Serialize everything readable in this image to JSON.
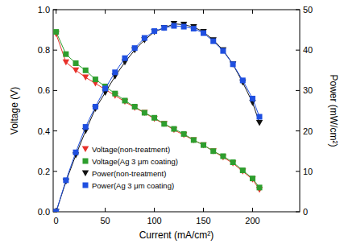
{
  "chart_data": {
    "type": "line",
    "x_label": "Current (mA/cm²)",
    "y_label": "Voltage (V)",
    "y2_label": "Power (mW/cm²)",
    "x": [
      0,
      10,
      20,
      30,
      40,
      50,
      60,
      70,
      80,
      90,
      100,
      110,
      120,
      130,
      140,
      150,
      160,
      170,
      180,
      190,
      200,
      207
    ],
    "xlim": [
      -3,
      248
    ],
    "xticks": [
      0,
      50,
      100,
      150,
      200
    ],
    "ylim": [
      0,
      1
    ],
    "yticks": [
      {
        "value": 0,
        "label": "0.0"
      },
      {
        "value": 0.2,
        "label": "0.2"
      },
      {
        "value": 0.4,
        "label": "0.4"
      },
      {
        "value": 0.6,
        "label": "0.6"
      },
      {
        "value": 0.8,
        "label": "0.8"
      },
      {
        "value": 1,
        "label": "1.0"
      }
    ],
    "y2lim": [
      0,
      50
    ],
    "y2ticks": [
      0,
      10,
      20,
      30,
      40,
      50
    ],
    "legend": "lower left",
    "grid": false,
    "series": [
      {
        "name": "Voltage(non-treatment)",
        "color": "#e8312a",
        "marker": "triangle-down",
        "values": [
          0.88,
          0.74,
          0.7,
          0.665,
          0.635,
          0.605,
          0.575,
          0.545,
          0.515,
          0.49,
          0.46,
          0.435,
          0.405,
          0.38,
          0.355,
          0.33,
          0.3,
          0.27,
          0.24,
          0.2,
          0.16,
          0.11
        ]
      },
      {
        "name": "Voltage(Ag 3 μm coating)",
        "color": "#2e9e2e",
        "marker": "square",
        "values": [
          0.89,
          0.78,
          0.735,
          0.7,
          0.655,
          0.62,
          0.585,
          0.55,
          0.52,
          0.49,
          0.465,
          0.435,
          0.41,
          0.385,
          0.355,
          0.33,
          0.3,
          0.275,
          0.245,
          0.205,
          0.165,
          0.12
        ]
      },
      {
        "name": "Power(non-treatment)",
        "color": "#111111",
        "marker": "triangle-down",
        "axis": "y2",
        "values": [
          0,
          7.5,
          14,
          20,
          25.5,
          29.5,
          33.5,
          37,
          40,
          42.5,
          44.5,
          45.5,
          46.5,
          46.3,
          45.7,
          44.5,
          42.5,
          40,
          36.5,
          32,
          27,
          22
        ]
      },
      {
        "name": "Power(Ag 3 μm coating)",
        "color": "#1f4fe0",
        "marker": "square",
        "axis": "y2",
        "values": [
          0,
          7.8,
          14.7,
          21,
          26,
          30.5,
          34.5,
          38,
          40.5,
          43,
          44.7,
          45.5,
          46,
          45.8,
          45.3,
          44.2,
          42.2,
          39.8,
          36.5,
          32.5,
          28,
          23.5
        ]
      }
    ]
  }
}
